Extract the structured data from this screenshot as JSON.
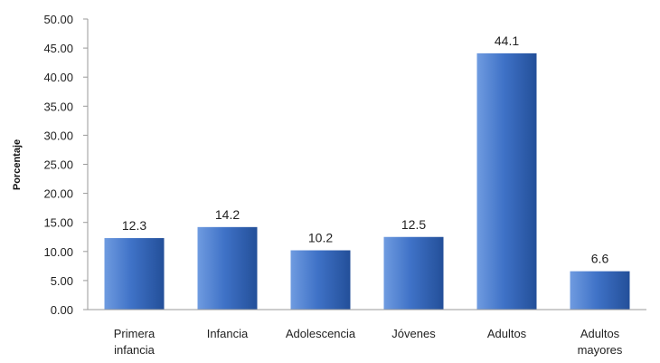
{
  "chart_data": {
    "type": "bar",
    "title": "",
    "xlabel": "",
    "ylabel": "Porcentaje",
    "ylim": [
      0,
      50
    ],
    "ytick_step": 5,
    "ytick_labels": [
      "0.00",
      "5.00",
      "10.00",
      "15.00",
      "20.00",
      "25.00",
      "30.00",
      "35.00",
      "40.00",
      "45.00",
      "50.00"
    ],
    "categories": [
      [
        "Primera",
        "infancia"
      ],
      [
        "Infancia"
      ],
      [
        "Adolescencia"
      ],
      [
        "Jóvenes"
      ],
      [
        "Adultos"
      ],
      [
        "Adultos",
        "mayores"
      ]
    ],
    "values": [
      12.3,
      14.2,
      10.2,
      12.5,
      44.1,
      6.6
    ],
    "data_labels": [
      "12.3",
      "14.2",
      "10.2",
      "12.5",
      "44.1",
      "6.6"
    ],
    "grid": false,
    "legend": "none",
    "colors": {
      "bar_light": "#6f9be0",
      "bar_mid": "#3f72c7",
      "bar_dark": "#234f99",
      "axis": "#9a9a9a"
    }
  }
}
